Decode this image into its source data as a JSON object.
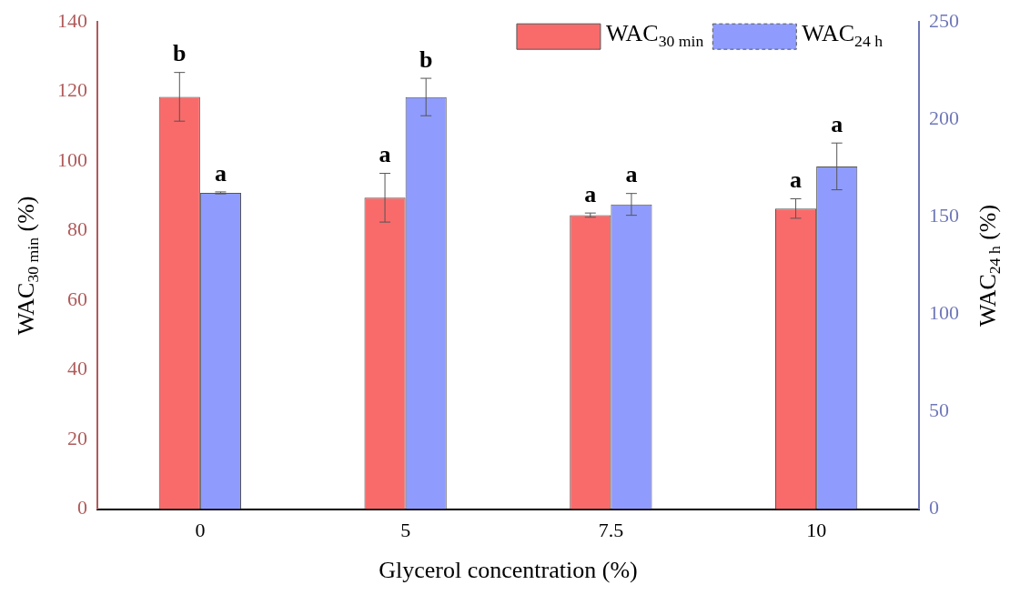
{
  "chart_data": {
    "type": "bar",
    "categories": [
      "0",
      "5",
      "7.5",
      "10"
    ],
    "xlabel": "Glycerol concentration (%)",
    "ylabel": "WAC$_{30 min}$ (%)",
    "y2label": "WAC$_{24 h}$ (%)",
    "series": [
      {
        "name": "WAC$_{30 min}$",
        "color": "#f96b6b",
        "values": [
          118.5,
          89.5,
          84.5,
          86.4
        ],
        "errors": [
          7,
          7,
          0.6,
          2.8
        ],
        "value_labels": [
          "b",
          "a",
          "a",
          "a"
        ]
      },
      {
        "name": "WAC$_{24 h}$",
        "color": "#8f9cfd",
        "axis": "y2",
        "values": [
          162.3,
          211.5,
          156.4,
          175.9
        ],
        "errors": [
          0.5,
          9.6,
          5.6,
          12
        ],
        "value_labels": [
          "a",
          "b",
          "a",
          "a"
        ]
      }
    ],
    "ylim": [
      0,
      140
    ],
    "yticks": [
      0,
      20,
      40,
      60,
      80,
      100,
      120,
      140
    ],
    "y2lim": [
      0,
      250
    ],
    "y2ticks": [
      0,
      50,
      100,
      150,
      200,
      250
    ],
    "legend": "top right"
  }
}
